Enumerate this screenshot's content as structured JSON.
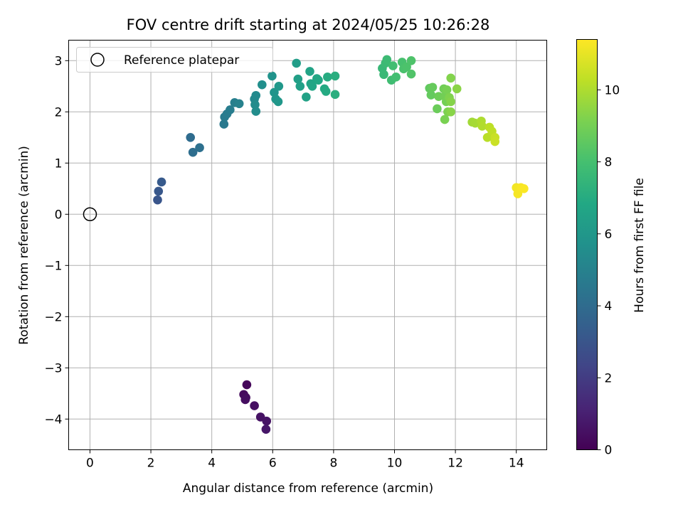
{
  "chart_data": {
    "type": "scatter",
    "title": "FOV centre drift starting at 2024/05/25 10:26:28",
    "xlabel": "Angular distance from reference (arcmin)",
    "ylabel": "Rotation from reference (arcmin)",
    "xlim": [
      -0.7,
      15.0
    ],
    "ylim": [
      -4.6,
      3.4
    ],
    "xticks": [
      0,
      2,
      4,
      6,
      8,
      10,
      12,
      14
    ],
    "xtick_labels": [
      "0",
      "2",
      "4",
      "6",
      "8",
      "10",
      "12",
      "14"
    ],
    "yticks": [
      -4,
      -3,
      -2,
      -1,
      0,
      1,
      2,
      3
    ],
    "ytick_labels": [
      "−4",
      "−3",
      "−2",
      "−1",
      "0",
      "1",
      "2",
      "3"
    ],
    "grid": true,
    "legend": {
      "position": "top-left",
      "entries": [
        "Reference platepar"
      ]
    },
    "reference_point": {
      "x": 0,
      "y": 0
    },
    "colorbar": {
      "label": "Hours from first FF file",
      "colormap": "viridis",
      "range": [
        0,
        11.4
      ],
      "ticks": [
        0,
        2,
        4,
        6,
        8,
        10
      ],
      "tick_labels": [
        "0",
        "2",
        "4",
        "6",
        "8",
        "10"
      ]
    },
    "points": [
      {
        "x": 5.15,
        "y": -3.33,
        "t": 0.2
      },
      {
        "x": 5.05,
        "y": -3.52,
        "t": 0.3
      },
      {
        "x": 5.12,
        "y": -3.58,
        "t": 0.35
      },
      {
        "x": 5.1,
        "y": -3.62,
        "t": 0.4
      },
      {
        "x": 5.4,
        "y": -3.74,
        "t": 0.5
      },
      {
        "x": 5.6,
        "y": -3.96,
        "t": 0.55
      },
      {
        "x": 5.8,
        "y": -4.04,
        "t": 0.6
      },
      {
        "x": 5.78,
        "y": -4.2,
        "t": 0.7
      },
      {
        "x": 2.22,
        "y": 0.28,
        "t": 3.0
      },
      {
        "x": 2.25,
        "y": 0.45,
        "t": 3.1
      },
      {
        "x": 2.35,
        "y": 0.63,
        "t": 3.2
      },
      {
        "x": 3.3,
        "y": 1.5,
        "t": 4.0
      },
      {
        "x": 3.38,
        "y": 1.21,
        "t": 4.1
      },
      {
        "x": 3.6,
        "y": 1.3,
        "t": 4.2
      },
      {
        "x": 4.4,
        "y": 1.76,
        "t": 4.6
      },
      {
        "x": 4.42,
        "y": 1.9,
        "t": 4.7
      },
      {
        "x": 4.5,
        "y": 1.96,
        "t": 4.75
      },
      {
        "x": 4.6,
        "y": 2.04,
        "t": 4.8
      },
      {
        "x": 4.75,
        "y": 2.18,
        "t": 4.9
      },
      {
        "x": 4.9,
        "y": 2.16,
        "t": 5.0
      },
      {
        "x": 5.4,
        "y": 2.25,
        "t": 5.3
      },
      {
        "x": 5.45,
        "y": 2.32,
        "t": 5.4
      },
      {
        "x": 5.42,
        "y": 2.14,
        "t": 5.45
      },
      {
        "x": 5.45,
        "y": 2.01,
        "t": 5.5
      },
      {
        "x": 5.65,
        "y": 2.53,
        "t": 5.6
      },
      {
        "x": 5.98,
        "y": 2.7,
        "t": 5.8
      },
      {
        "x": 6.05,
        "y": 2.38,
        "t": 5.9
      },
      {
        "x": 6.1,
        "y": 2.25,
        "t": 5.95
      },
      {
        "x": 6.18,
        "y": 2.2,
        "t": 6.0
      },
      {
        "x": 6.2,
        "y": 2.5,
        "t": 6.05
      },
      {
        "x": 6.78,
        "y": 2.95,
        "t": 6.3
      },
      {
        "x": 6.83,
        "y": 2.64,
        "t": 6.4
      },
      {
        "x": 6.9,
        "y": 2.5,
        "t": 6.45
      },
      {
        "x": 7.1,
        "y": 2.29,
        "t": 6.5
      },
      {
        "x": 7.22,
        "y": 2.79,
        "t": 6.6
      },
      {
        "x": 7.25,
        "y": 2.55,
        "t": 6.65
      },
      {
        "x": 7.3,
        "y": 2.5,
        "t": 6.7
      },
      {
        "x": 7.45,
        "y": 2.65,
        "t": 6.75
      },
      {
        "x": 7.5,
        "y": 2.62,
        "t": 6.8
      },
      {
        "x": 7.7,
        "y": 2.45,
        "t": 6.9
      },
      {
        "x": 7.75,
        "y": 2.4,
        "t": 6.95
      },
      {
        "x": 7.8,
        "y": 2.68,
        "t": 7.0
      },
      {
        "x": 8.05,
        "y": 2.7,
        "t": 7.1
      },
      {
        "x": 8.05,
        "y": 2.34,
        "t": 7.15
      },
      {
        "x": 9.6,
        "y": 2.85,
        "t": 7.6
      },
      {
        "x": 9.65,
        "y": 2.73,
        "t": 7.65
      },
      {
        "x": 9.7,
        "y": 2.95,
        "t": 7.7
      },
      {
        "x": 9.75,
        "y": 3.02,
        "t": 7.75
      },
      {
        "x": 9.9,
        "y": 2.62,
        "t": 7.85
      },
      {
        "x": 9.95,
        "y": 2.9,
        "t": 7.9
      },
      {
        "x": 10.05,
        "y": 2.68,
        "t": 7.95
      },
      {
        "x": 10.25,
        "y": 2.97,
        "t": 8.05
      },
      {
        "x": 10.3,
        "y": 2.84,
        "t": 8.1
      },
      {
        "x": 10.4,
        "y": 2.88,
        "t": 8.15
      },
      {
        "x": 10.55,
        "y": 3.0,
        "t": 8.2
      },
      {
        "x": 10.55,
        "y": 2.74,
        "t": 8.25
      },
      {
        "x": 11.15,
        "y": 2.46,
        "t": 8.6
      },
      {
        "x": 11.2,
        "y": 2.33,
        "t": 8.65
      },
      {
        "x": 11.25,
        "y": 2.48,
        "t": 8.7
      },
      {
        "x": 11.4,
        "y": 2.06,
        "t": 8.8
      },
      {
        "x": 11.45,
        "y": 2.3,
        "t": 8.85
      },
      {
        "x": 11.62,
        "y": 2.45,
        "t": 8.9
      },
      {
        "x": 11.65,
        "y": 2.3,
        "t": 8.95
      },
      {
        "x": 11.7,
        "y": 2.2,
        "t": 9.0
      },
      {
        "x": 11.72,
        "y": 2.43,
        "t": 9.05
      },
      {
        "x": 11.65,
        "y": 1.85,
        "t": 9.1
      },
      {
        "x": 11.75,
        "y": 2.0,
        "t": 9.15
      },
      {
        "x": 11.8,
        "y": 2.28,
        "t": 9.2
      },
      {
        "x": 11.85,
        "y": 2.66,
        "t": 9.25
      },
      {
        "x": 11.85,
        "y": 2.2,
        "t": 9.3
      },
      {
        "x": 11.85,
        "y": 2.0,
        "t": 9.35
      },
      {
        "x": 12.05,
        "y": 2.45,
        "t": 9.4
      },
      {
        "x": 12.55,
        "y": 1.8,
        "t": 9.8
      },
      {
        "x": 12.65,
        "y": 1.78,
        "t": 9.85
      },
      {
        "x": 12.85,
        "y": 1.82,
        "t": 10.0
      },
      {
        "x": 12.88,
        "y": 1.72,
        "t": 10.05
      },
      {
        "x": 13.05,
        "y": 1.5,
        "t": 10.2
      },
      {
        "x": 13.12,
        "y": 1.7,
        "t": 10.25
      },
      {
        "x": 13.2,
        "y": 1.62,
        "t": 10.3
      },
      {
        "x": 13.3,
        "y": 1.5,
        "t": 10.45
      },
      {
        "x": 13.3,
        "y": 1.42,
        "t": 10.5
      },
      {
        "x": 14.0,
        "y": 0.52,
        "t": 11.2
      },
      {
        "x": 14.05,
        "y": 0.4,
        "t": 11.25
      },
      {
        "x": 14.15,
        "y": 0.52,
        "t": 11.3
      },
      {
        "x": 14.25,
        "y": 0.5,
        "t": 11.35
      }
    ]
  }
}
